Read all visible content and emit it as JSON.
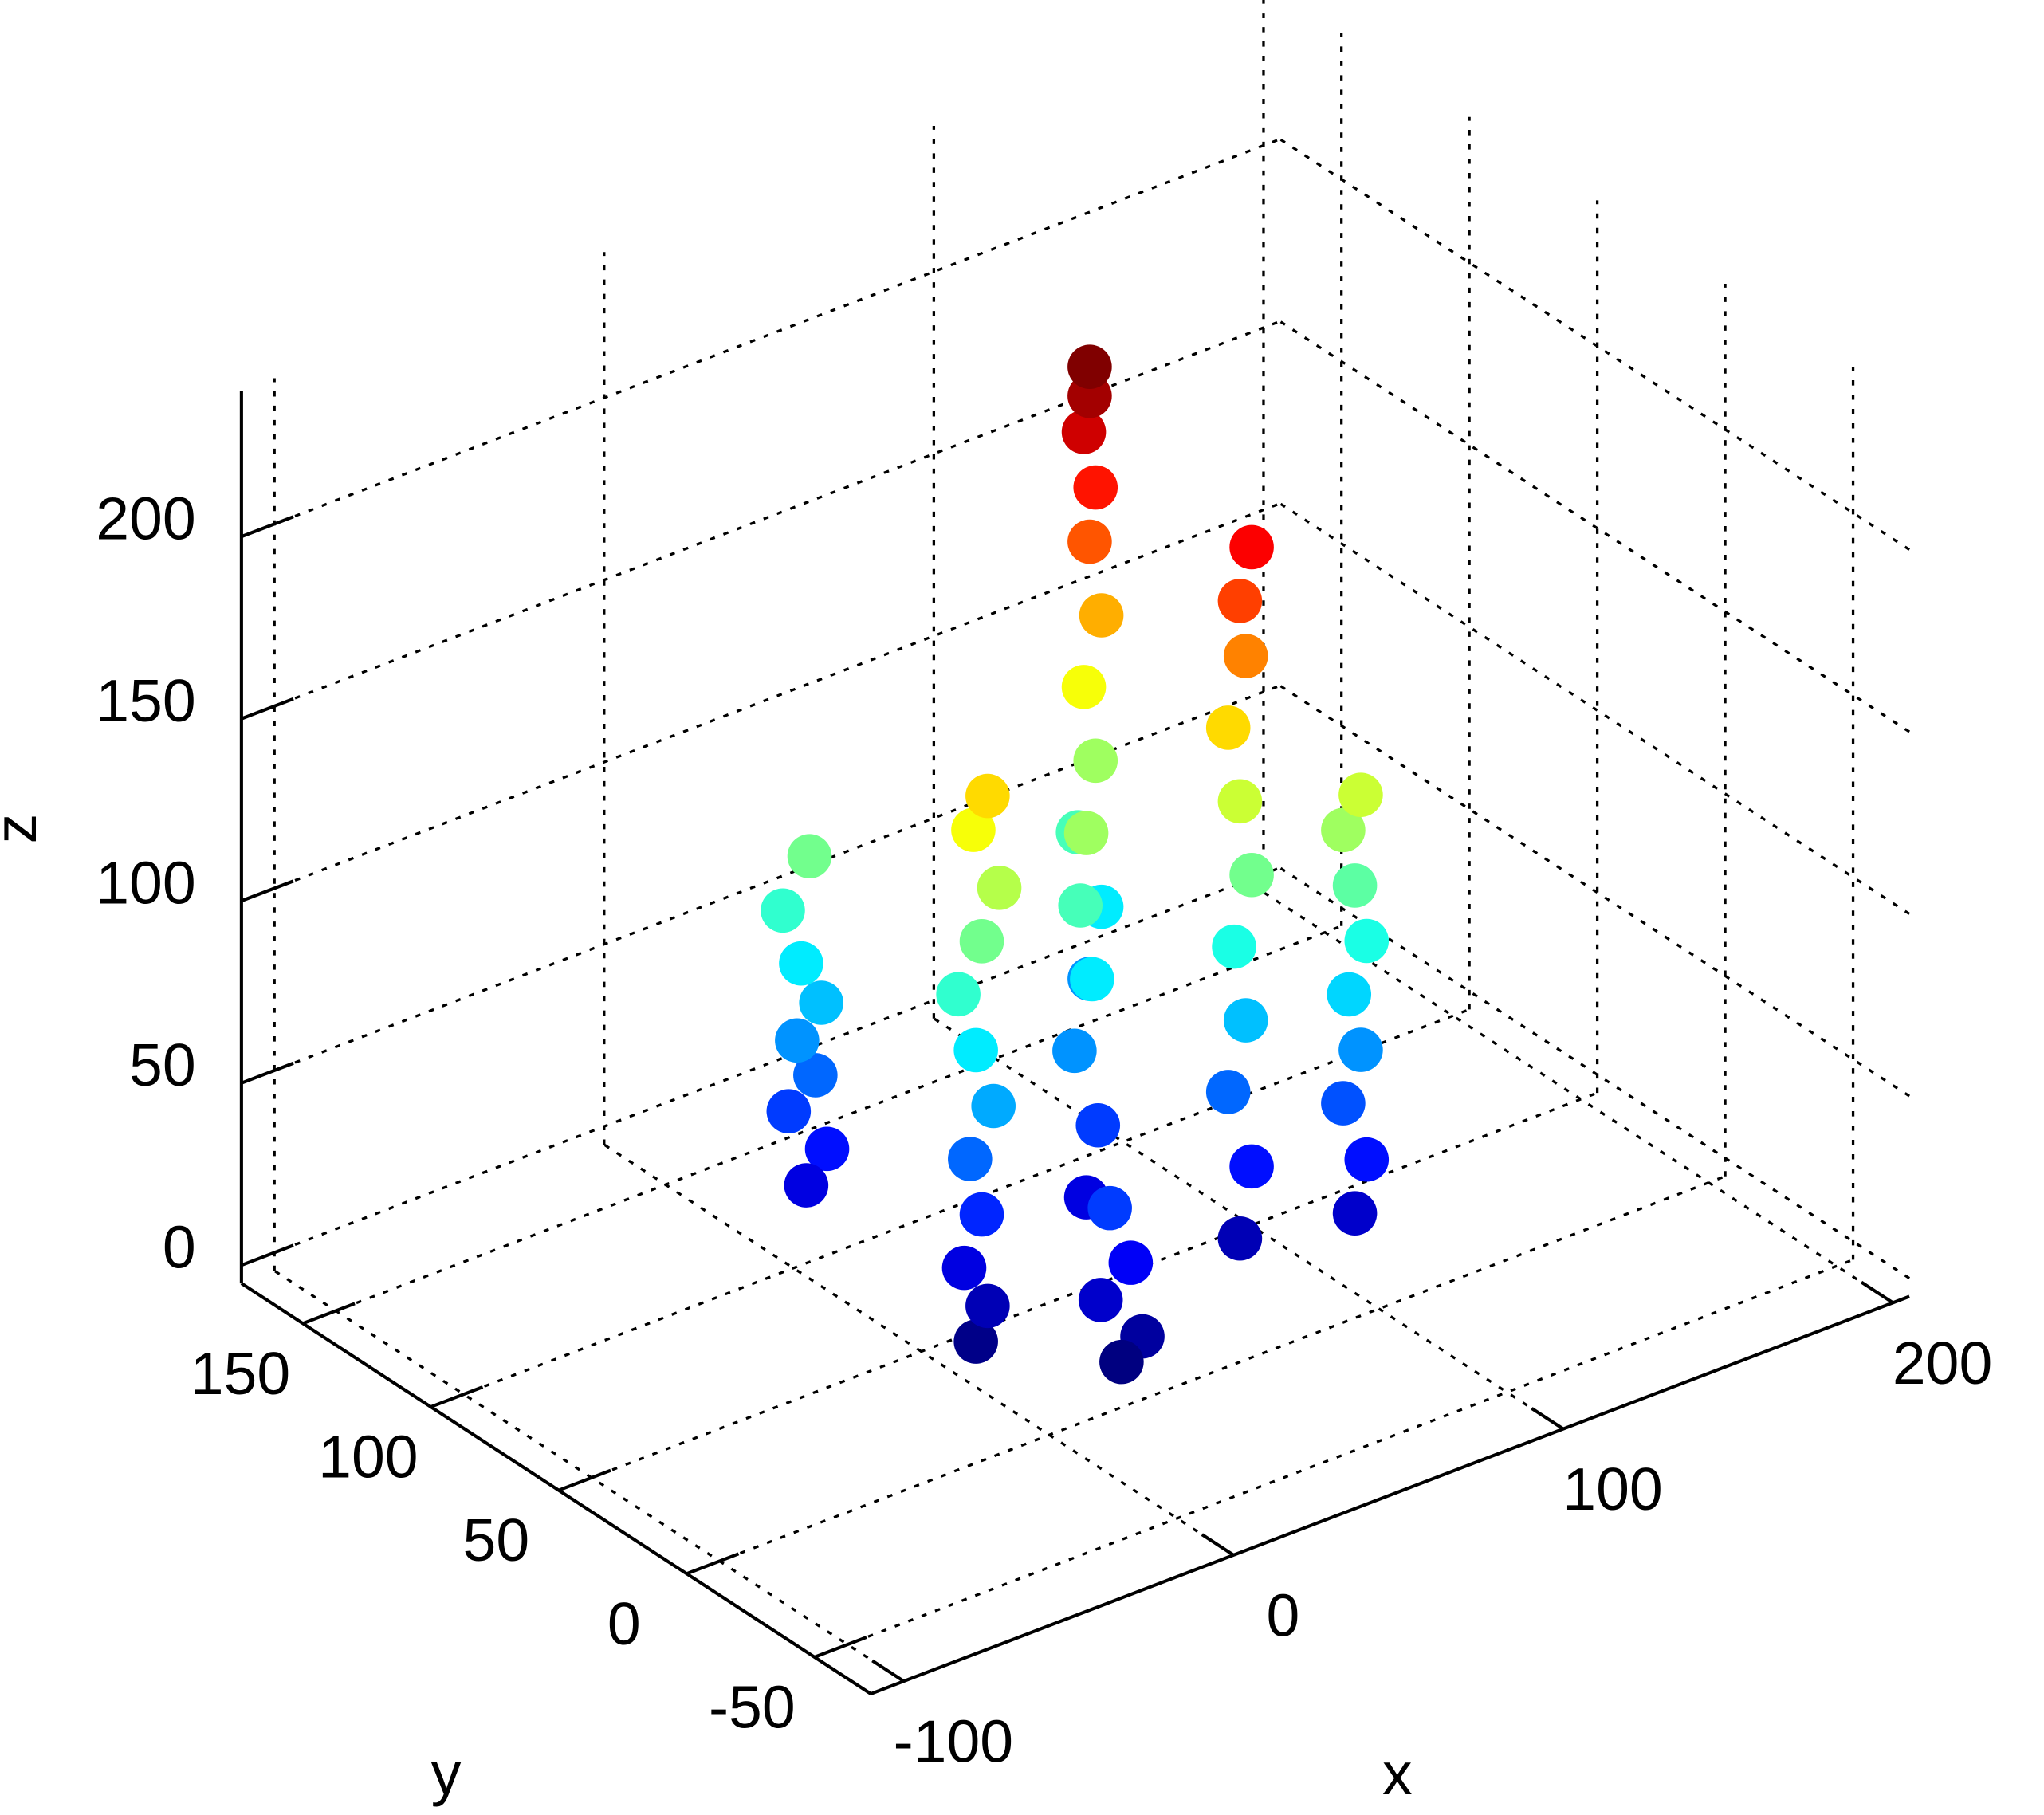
{
  "chart_data": {
    "type": "scatter3d",
    "xlabel": "x",
    "ylabel": "y",
    "zlabel": "z",
    "xlim": [
      -110,
      205
    ],
    "ylim": [
      -72,
      174
    ],
    "zlim": [
      -5,
      240
    ],
    "xticks": [
      -100,
      0,
      100,
      200
    ],
    "yticks": [
      -50,
      0,
      50,
      100,
      150
    ],
    "zticks": [
      0,
      50,
      100,
      150,
      200
    ],
    "grid": true,
    "colormap": "jet",
    "x": [
      0,
      4,
      -3,
      2,
      -2,
      3,
      0,
      -4,
      1,
      8,
      10,
      6,
      9,
      7,
      11,
      8,
      5,
      9,
      12,
      8,
      10,
      32,
      36,
      28,
      34,
      30,
      72,
      74,
      70,
      73,
      71,
      74,
      72,
      73,
      71,
      72,
      72,
      78,
      80,
      76,
      79,
      77,
      80,
      78,
      76,
      79,
      78,
      80,
      102,
      104,
      100,
      103,
      101,
      104,
      102,
      100,
      103,
      50,
      52,
      48,
      51,
      49,
      50
    ],
    "y": [
      95,
      92,
      98,
      94,
      96,
      93,
      97,
      99,
      95,
      39,
      37,
      41,
      38,
      40,
      36,
      39,
      42,
      38,
      35,
      40,
      37,
      13,
      10,
      16,
      12,
      15,
      77,
      75,
      79,
      76,
      78,
      75,
      77,
      76,
      78,
      77,
      77,
      26,
      24,
      28,
      25,
      27,
      24,
      26,
      28,
      25,
      26,
      24,
      12,
      10,
      14,
      11,
      13,
      10,
      12,
      14,
      11,
      50,
      48,
      52,
      49,
      51,
      50
    ],
    "z": [
      20,
      30,
      40,
      50,
      60,
      70,
      80,
      95,
      110,
      0,
      10,
      20,
      35,
      50,
      65,
      80,
      95,
      110,
      125,
      140,
      150,
      -2,
      5,
      15,
      25,
      40,
      60,
      80,
      100,
      120,
      140,
      160,
      180,
      195,
      210,
      220,
      228,
      10,
      30,
      50,
      70,
      90,
      110,
      130,
      150,
      170,
      185,
      200,
      15,
      30,
      45,
      60,
      75,
      90,
      105,
      120,
      130,
      20,
      40,
      60,
      80,
      100,
      120
    ]
  }
}
